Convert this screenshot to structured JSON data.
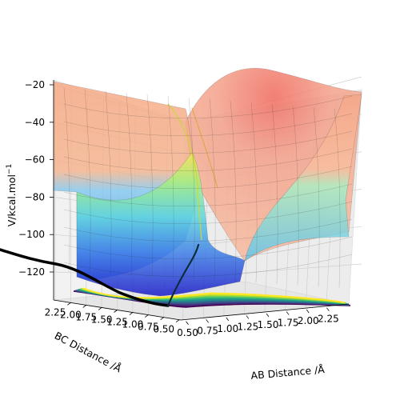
{
  "chart_data": {
    "type": "surface3d",
    "zlabel": "V/kcal.mol$^{-1}$",
    "zlabel_parts": {
      "main": "V/kcal.mol",
      "sup": "−1"
    },
    "xlabel": "AB Distance /Å",
    "ylabel": "BC Distance /Å",
    "x_ticks": [
      "0.50",
      "0.75",
      "1.00",
      "1.25",
      "1.50",
      "1.75",
      "2.00",
      "2.25"
    ],
    "y_ticks": [
      "0.50",
      "0.75",
      "1.00",
      "1.25",
      "1.50",
      "1.75",
      "2.00",
      "2.25"
    ],
    "z_ticks": [
      "−120",
      "−100",
      "−80",
      "−60",
      "−40",
      "−20"
    ],
    "xlim": [
      0.5,
      2.4
    ],
    "ylim": [
      0.5,
      2.4
    ],
    "zlim": [
      -135,
      -17
    ],
    "colormap_surface": "jet",
    "colormap_contour": "viridis",
    "grid": true,
    "trajectory_color": "#000000",
    "reaction_path": {
      "description_free": true,
      "points": [
        {
          "ab": 0.74,
          "bc": 2.3
        },
        {
          "ab": 0.74,
          "bc": 2.0
        },
        {
          "ab": 0.75,
          "bc": 1.7
        },
        {
          "ab": 0.77,
          "bc": 1.4
        },
        {
          "ab": 0.8,
          "bc": 1.2
        },
        {
          "ab": 0.86,
          "bc": 1.05
        },
        {
          "ab": 0.93,
          "bc": 0.96
        },
        {
          "ab": 1.0,
          "bc": 0.9
        },
        {
          "ab": 1.1,
          "bc": 0.85
        },
        {
          "ab": 1.25,
          "bc": 0.82
        },
        {
          "ab": 1.4,
          "bc": 0.8
        }
      ]
    }
  }
}
